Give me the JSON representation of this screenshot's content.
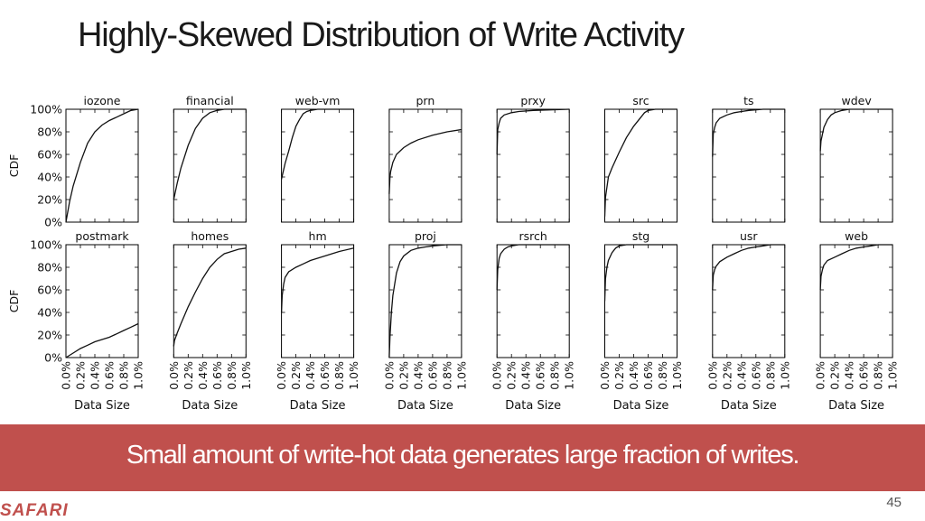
{
  "slide": {
    "title": "Highly-Skewed Distribution of Write Activity",
    "banner": "Small amount of write-hot data generates large fraction of writes.",
    "logo": "SAFARI",
    "page_number": "45"
  },
  "colors": {
    "banner": "#c0504d",
    "line": "#111111"
  },
  "chart_data": {
    "type": "line",
    "layout": "small-multiples",
    "grid": false,
    "xlabel": "Data Size",
    "ylabel": "CDF",
    "xlim": [
      0,
      1.0
    ],
    "ylim": [
      0,
      100
    ],
    "xticks": [
      "0.0%",
      "0.2%",
      "0.4%",
      "0.6%",
      "0.8%",
      "1.0%"
    ],
    "yticks": [
      "0%",
      "20%",
      "40%",
      "60%",
      "80%",
      "100%"
    ],
    "panels": [
      {
        "name": "iozone",
        "x": [
          0,
          0.05,
          0.1,
          0.2,
          0.3,
          0.4,
          0.5,
          0.6,
          0.7,
          0.8,
          0.9,
          1.0
        ],
        "y": [
          0,
          18,
          32,
          53,
          70,
          80,
          86,
          90,
          93,
          96,
          99,
          100
        ]
      },
      {
        "name": "financial",
        "x": [
          0,
          0.05,
          0.1,
          0.2,
          0.3,
          0.4,
          0.5,
          0.6,
          0.7,
          0.8,
          1.0
        ],
        "y": [
          20,
          35,
          48,
          68,
          83,
          92,
          97,
          99,
          100,
          100,
          100
        ]
      },
      {
        "name": "web-vm",
        "x": [
          0,
          0.05,
          0.1,
          0.15,
          0.2,
          0.25,
          0.3,
          0.35,
          0.4,
          0.5,
          0.6,
          1.0
        ],
        "y": [
          38,
          52,
          63,
          75,
          85,
          91,
          96,
          98,
          99,
          100,
          100,
          100
        ]
      },
      {
        "name": "prn",
        "x": [
          0,
          0.01,
          0.02,
          0.05,
          0.1,
          0.2,
          0.3,
          0.4,
          0.6,
          0.8,
          1.0
        ],
        "y": [
          25,
          40,
          45,
          53,
          60,
          66,
          70,
          73,
          77,
          80,
          82
        ]
      },
      {
        "name": "prxy",
        "x": [
          0,
          0.01,
          0.03,
          0.05,
          0.1,
          0.2,
          0.3,
          0.5,
          1.0
        ],
        "y": [
          60,
          82,
          88,
          92,
          95,
          97,
          98,
          99,
          100
        ]
      },
      {
        "name": "src",
        "x": [
          0,
          0.01,
          0.05,
          0.1,
          0.2,
          0.3,
          0.4,
          0.5,
          0.55,
          0.6,
          0.7,
          1.0
        ],
        "y": [
          5,
          22,
          40,
          48,
          62,
          75,
          85,
          93,
          97,
          99,
          100,
          100
        ]
      },
      {
        "name": "ts",
        "x": [
          0,
          0.01,
          0.03,
          0.05,
          0.1,
          0.2,
          0.3,
          0.4,
          0.5,
          0.7,
          1.0
        ],
        "y": [
          58,
          78,
          84,
          88,
          92,
          95,
          97,
          98,
          99,
          100,
          100
        ]
      },
      {
        "name": "wdev",
        "x": [
          0,
          0.01,
          0.03,
          0.05,
          0.1,
          0.15,
          0.2,
          0.3,
          0.4,
          0.5,
          1.0
        ],
        "y": [
          63,
          72,
          78,
          84,
          91,
          95,
          97,
          99,
          100,
          100,
          100
        ]
      },
      {
        "name": "postmark",
        "x": [
          0,
          0.1,
          0.2,
          0.3,
          0.4,
          0.5,
          0.6,
          0.7,
          0.8,
          0.9,
          1.0
        ],
        "y": [
          0,
          4,
          8,
          11,
          14,
          16,
          18,
          21,
          24,
          27,
          30
        ]
      },
      {
        "name": "homes",
        "x": [
          0,
          0.01,
          0.05,
          0.1,
          0.2,
          0.3,
          0.4,
          0.5,
          0.6,
          0.7,
          0.8,
          0.9,
          1.0
        ],
        "y": [
          10,
          15,
          22,
          30,
          45,
          58,
          70,
          80,
          87,
          92,
          94,
          96,
          97
        ]
      },
      {
        "name": "hm",
        "x": [
          0,
          0.01,
          0.03,
          0.05,
          0.1,
          0.2,
          0.3,
          0.4,
          0.5,
          0.6,
          0.7,
          0.8,
          1.0
        ],
        "y": [
          40,
          55,
          65,
          71,
          76,
          80,
          83,
          86,
          88,
          90,
          92,
          94,
          97
        ]
      },
      {
        "name": "proj",
        "x": [
          0,
          0.01,
          0.03,
          0.05,
          0.1,
          0.15,
          0.2,
          0.3,
          0.4,
          0.5,
          0.6,
          0.8,
          1.0
        ],
        "y": [
          0,
          18,
          40,
          55,
          75,
          85,
          90,
          95,
          97,
          98,
          99,
          100,
          100
        ]
      },
      {
        "name": "rsrch",
        "x": [
          0,
          0.01,
          0.03,
          0.05,
          0.1,
          0.15,
          0.2,
          0.3,
          0.5,
          1.0
        ],
        "y": [
          60,
          78,
          88,
          92,
          96,
          98,
          99,
          100,
          100,
          100
        ]
      },
      {
        "name": "stg",
        "x": [
          0,
          0.01,
          0.03,
          0.05,
          0.1,
          0.15,
          0.2,
          0.3,
          0.5,
          1.0
        ],
        "y": [
          50,
          70,
          80,
          86,
          93,
          97,
          99,
          100,
          100,
          100
        ]
      },
      {
        "name": "usr",
        "x": [
          0,
          0.01,
          0.03,
          0.05,
          0.1,
          0.2,
          0.3,
          0.4,
          0.5,
          0.6,
          0.7,
          0.8,
          1.0
        ],
        "y": [
          60,
          73,
          78,
          81,
          85,
          89,
          92,
          95,
          97,
          98,
          99,
          100,
          100
        ]
      },
      {
        "name": "web",
        "x": [
          0,
          0.01,
          0.03,
          0.05,
          0.1,
          0.2,
          0.3,
          0.4,
          0.5,
          0.6,
          0.7,
          0.8,
          1.0
        ],
        "y": [
          60,
          72,
          78,
          82,
          86,
          89,
          92,
          95,
          97,
          98,
          99,
          100,
          100
        ]
      }
    ]
  }
}
